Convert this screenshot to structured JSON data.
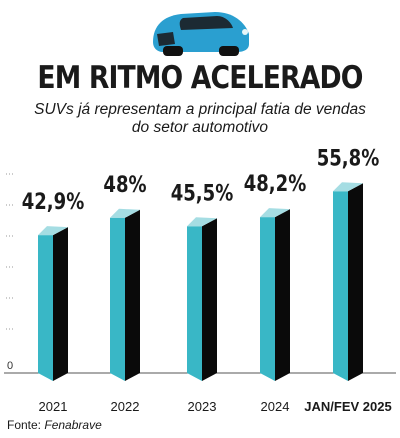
{
  "title": "EM RITMO ACELERADO",
  "subtitle": "SUVs já representam a principal fatia de vendas do setor automotivo",
  "source": {
    "label": "Fonte:",
    "name": "Fenabrave"
  },
  "colors": {
    "bar_front": "#39b7c6",
    "bar_side": "#0a0a0a",
    "bar_top": "#a5dde3",
    "car": "#2a9fd0"
  },
  "chart_data": {
    "type": "bar",
    "title": "EM RITMO ACELERADO",
    "subtitle": "SUVs já representam a principal fatia de vendas do setor automotivo",
    "categories": [
      "2021",
      "2022",
      "2023",
      "2024",
      "JAN/FEV 2025"
    ],
    "values": [
      42.9,
      48,
      45.5,
      48.2,
      55.8
    ],
    "data_labels": [
      "42,9%",
      "48%",
      "45,5%",
      "48,2%",
      "55,8%"
    ],
    "y_tick_labels": [
      "0"
    ],
    "ylim": [
      0,
      60
    ],
    "grid": false,
    "legend": "none",
    "xlabel": "",
    "ylabel": ""
  }
}
